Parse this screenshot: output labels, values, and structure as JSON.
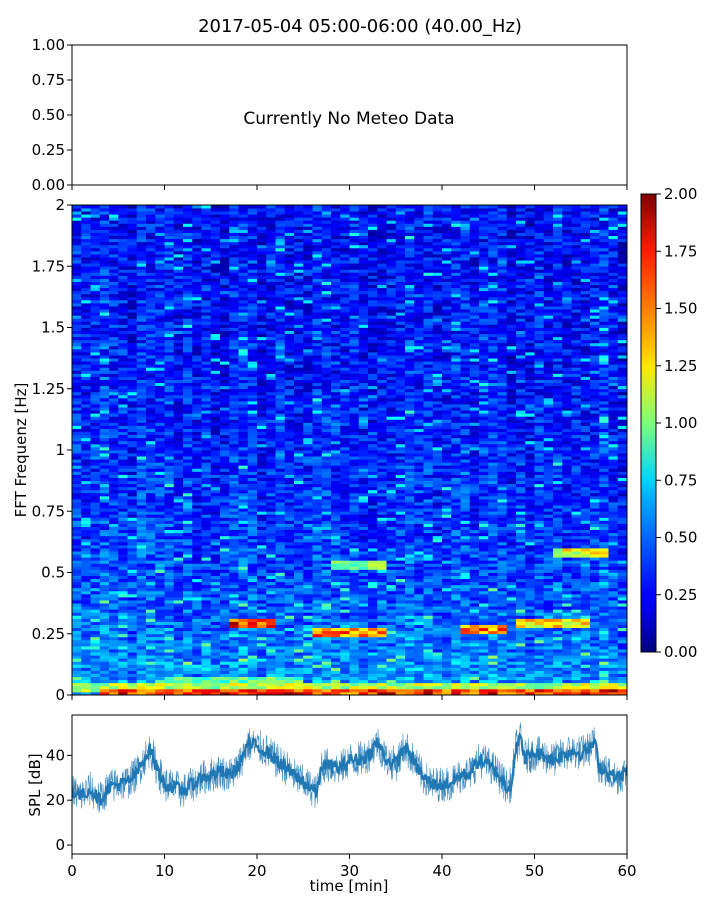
{
  "chart_data": [
    {
      "id": "meteo",
      "type": "line",
      "title": "2017-05-04 05:00-06:00 (40.00_Hz)",
      "message": "Currently No Meteo Data",
      "xlim": [
        0,
        60
      ],
      "ylim": [
        0,
        1
      ],
      "yticks": [
        "0.00",
        "0.25",
        "0.50",
        "0.75",
        "1.00"
      ],
      "ytick_values": [
        0,
        0.25,
        0.5,
        0.75,
        1.0
      ],
      "xtick_values": [
        0,
        10,
        20,
        30,
        40,
        50,
        60
      ],
      "grid": false
    },
    {
      "id": "spectrogram",
      "type": "heatmap",
      "ylabel": "FFT Frequenz [Hz]",
      "xlim": [
        0,
        60
      ],
      "ylim": [
        0,
        2
      ],
      "yticks": [
        "0",
        "0.25",
        "0.5",
        "0.75",
        "1",
        "1.25",
        "1.5",
        "1.75",
        "2"
      ],
      "ytick_values": [
        0,
        0.25,
        0.5,
        0.75,
        1.0,
        1.25,
        1.5,
        1.75,
        2.0
      ],
      "colormap": "jet",
      "colorbar": {
        "range": [
          0,
          2
        ],
        "ticks": [
          "0.00",
          "0.25",
          "0.50",
          "0.75",
          "1.00",
          "1.25",
          "1.50",
          "1.75",
          "2.00"
        ],
        "tick_values": [
          0,
          0.25,
          0.5,
          0.75,
          1.0,
          1.25,
          1.5,
          1.75,
          2.0
        ]
      },
      "bands": [
        {
          "freq": 0.01,
          "time": [
            3,
            60
          ],
          "level": 1.8
        },
        {
          "freq": 0.03,
          "time": [
            0,
            60
          ],
          "level": 1.2
        },
        {
          "freq": 0.06,
          "time": [
            10,
            25
          ],
          "level": 1.0
        },
        {
          "freq": 0.29,
          "time": [
            17,
            22
          ],
          "level": 1.85
        },
        {
          "freq": 0.26,
          "time": [
            26,
            34
          ],
          "level": 1.6
        },
        {
          "freq": 0.27,
          "time": [
            42,
            47
          ],
          "level": 1.6
        },
        {
          "freq": 0.29,
          "time": [
            48,
            56
          ],
          "level": 1.4
        },
        {
          "freq": 0.58,
          "time": [
            52,
            58
          ],
          "level": 1.3
        },
        {
          "freq": 0.53,
          "time": [
            28,
            34
          ],
          "level": 1.1
        }
      ],
      "grid": false
    },
    {
      "id": "spl",
      "type": "line",
      "ylabel": "SPL [dB]",
      "xlabel": "time [min]",
      "xlim": [
        0,
        60
      ],
      "ylim": [
        -4,
        58
      ],
      "yticks": [
        "0",
        "20",
        "40"
      ],
      "ytick_values": [
        0,
        20,
        40
      ],
      "xticks": [
        "0",
        "10",
        "20",
        "30",
        "40",
        "50",
        "60"
      ],
      "xtick_values": [
        0,
        10,
        20,
        30,
        40,
        50,
        60
      ],
      "color": "#1f77b4",
      "series": [
        {
          "x": [
            0,
            1,
            2,
            3,
            4,
            5,
            6,
            7,
            8,
            8.5,
            9,
            10,
            11,
            12,
            13,
            14,
            15,
            16,
            17,
            18,
            19,
            20,
            21,
            22,
            23,
            24,
            25,
            26,
            26.5,
            27,
            28,
            29,
            30,
            31,
            32,
            33,
            34,
            35,
            36,
            37,
            38,
            39,
            40,
            41,
            42,
            43,
            44,
            45,
            46,
            47,
            47.5,
            48,
            48.5,
            49,
            50,
            51,
            52,
            53,
            54,
            55,
            56,
            56.5,
            57,
            58,
            59,
            60
          ],
          "values": [
            24,
            22,
            25,
            20,
            26,
            27,
            28,
            32,
            40,
            43,
            36,
            27,
            26,
            24,
            27,
            30,
            31,
            33,
            31,
            35,
            45,
            44,
            42,
            38,
            35,
            31,
            28,
            25,
            23,
            36,
            35,
            34,
            38,
            38,
            40,
            46,
            38,
            36,
            44,
            37,
            30,
            27,
            27,
            28,
            31,
            32,
            38,
            36,
            32,
            26,
            27,
            44,
            47,
            39,
            41,
            40,
            38,
            40,
            42,
            41,
            43,
            46,
            35,
            32,
            30,
            33
          ]
        }
      ],
      "grid": false
    }
  ]
}
